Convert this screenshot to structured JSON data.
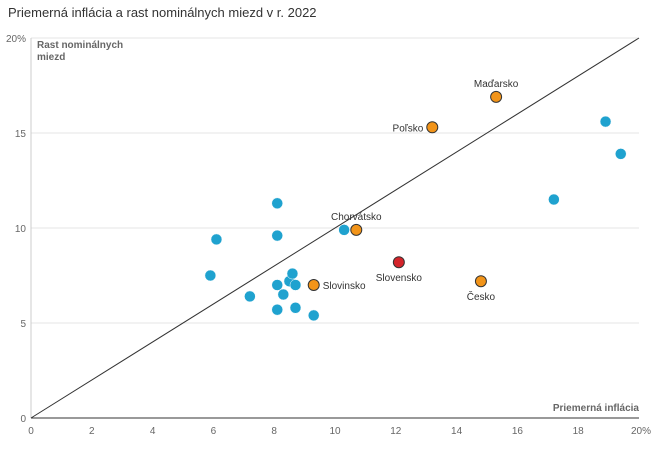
{
  "chart_data": {
    "type": "scatter",
    "title": "Priemerná inflácia a rast nominálnych miezd v r. 2022",
    "xlabel": "Priemerná inflácia",
    "ylabel_line1": "Rast nominálnych",
    "ylabel_line2": "miezd",
    "xlim": [
      0,
      20
    ],
    "ylim": [
      0,
      20
    ],
    "x_ticks": [
      0,
      2,
      4,
      6,
      8,
      10,
      12,
      14,
      16,
      18,
      20
    ],
    "x_tick_labels": [
      "0",
      "2",
      "4",
      "6",
      "8",
      "10",
      "12",
      "14",
      "16",
      "18",
      "20%"
    ],
    "y_ticks": [
      0,
      5,
      10,
      15,
      20
    ],
    "y_tick_labels": [
      "0",
      "5",
      "10",
      "15",
      "20%"
    ],
    "grid": true,
    "diagonal_line": true,
    "colors": {
      "other": "#1fa2cf",
      "highlight": "#f29419",
      "slovakia": "#d4242a",
      "outline": "#333333"
    },
    "points": [
      {
        "x": 5.9,
        "y": 7.5,
        "group": "other"
      },
      {
        "x": 6.1,
        "y": 9.4,
        "group": "other"
      },
      {
        "x": 7.2,
        "y": 6.4,
        "group": "other"
      },
      {
        "x": 8.1,
        "y": 11.3,
        "group": "other"
      },
      {
        "x": 8.1,
        "y": 9.6,
        "group": "other"
      },
      {
        "x": 8.1,
        "y": 7.0,
        "group": "other"
      },
      {
        "x": 8.1,
        "y": 5.7,
        "group": "other"
      },
      {
        "x": 8.3,
        "y": 6.5,
        "group": "other"
      },
      {
        "x": 8.5,
        "y": 7.2,
        "group": "other"
      },
      {
        "x": 8.6,
        "y": 7.6,
        "group": "other"
      },
      {
        "x": 8.7,
        "y": 7.0,
        "group": "other"
      },
      {
        "x": 8.7,
        "y": 5.8,
        "group": "other"
      },
      {
        "x": 9.3,
        "y": 5.4,
        "group": "other"
      },
      {
        "x": 10.3,
        "y": 9.9,
        "group": "other"
      },
      {
        "x": 17.2,
        "y": 11.5,
        "group": "other"
      },
      {
        "x": 18.9,
        "y": 15.6,
        "group": "other"
      },
      {
        "x": 19.4,
        "y": 13.9,
        "group": "other"
      },
      {
        "x": 9.3,
        "y": 7.0,
        "group": "highlight",
        "label": "Slovinsko",
        "anchor": "right"
      },
      {
        "x": 10.7,
        "y": 9.9,
        "group": "highlight",
        "label": "Chorvátsko",
        "anchor": "above"
      },
      {
        "x": 13.2,
        "y": 15.3,
        "group": "highlight",
        "label": "Poľsko",
        "anchor": "left"
      },
      {
        "x": 15.3,
        "y": 16.9,
        "group": "highlight",
        "label": "Maďarsko",
        "anchor": "above"
      },
      {
        "x": 14.8,
        "y": 7.2,
        "group": "highlight",
        "label": "Česko",
        "anchor": "below"
      },
      {
        "x": 12.1,
        "y": 8.2,
        "group": "slovakia",
        "label": "Slovensko",
        "anchor": "below"
      }
    ]
  }
}
